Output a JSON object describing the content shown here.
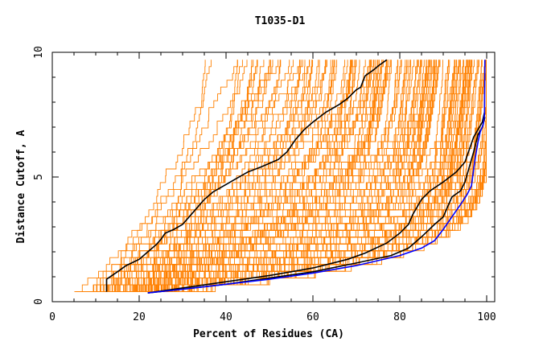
{
  "chart_data": {
    "type": "line",
    "title": "T1035-D1",
    "xlabel": "Percent of Residues (CA)",
    "ylabel": "Distance Cutoff, A",
    "xlim": [
      0,
      100
    ],
    "ylim": [
      0,
      10
    ],
    "xticks": [
      "0",
      "20",
      "40",
      "60",
      "80",
      "100"
    ],
    "yticks": [
      "0",
      "5",
      "10"
    ],
    "x_minor_step": 5,
    "y_minor_step": 1,
    "grid": false,
    "legend": "none",
    "background_model_count": 160,
    "colors": {
      "background": "#FF8000",
      "highlight": "#000000",
      "best": "#0000FF"
    },
    "series": [
      {
        "color": "#000000",
        "points": [
          [
            12.5,
            0.4
          ],
          [
            12.5,
            0.9
          ],
          [
            15,
            1.2
          ],
          [
            17,
            1.45
          ],
          [
            20,
            1.7
          ],
          [
            22,
            2.0
          ],
          [
            24,
            2.3
          ],
          [
            25,
            2.5
          ],
          [
            26,
            2.75
          ],
          [
            28,
            2.9
          ],
          [
            30,
            3.1
          ],
          [
            31,
            3.3
          ],
          [
            33,
            3.7
          ],
          [
            35,
            4.1
          ],
          [
            37,
            4.4
          ],
          [
            40,
            4.7
          ],
          [
            42,
            4.9
          ],
          [
            45,
            5.2
          ],
          [
            48,
            5.4
          ],
          [
            50,
            5.55
          ],
          [
            52,
            5.7
          ],
          [
            54,
            6.0
          ],
          [
            56,
            6.5
          ],
          [
            58,
            6.9
          ],
          [
            60,
            7.2
          ],
          [
            63,
            7.6
          ],
          [
            66,
            7.9
          ],
          [
            68,
            8.15
          ],
          [
            70,
            8.5
          ],
          [
            71,
            8.6
          ],
          [
            72,
            9.05
          ],
          [
            74,
            9.3
          ],
          [
            75,
            9.45
          ],
          [
            77,
            9.7
          ]
        ]
      },
      {
        "color": "#000000",
        "points": [
          [
            22,
            0.35
          ],
          [
            30,
            0.55
          ],
          [
            40,
            0.8
          ],
          [
            50,
            1.05
          ],
          [
            60,
            1.35
          ],
          [
            68,
            1.7
          ],
          [
            72,
            1.95
          ],
          [
            77,
            2.35
          ],
          [
            80,
            2.75
          ],
          [
            82,
            3.1
          ],
          [
            83,
            3.5
          ],
          [
            85,
            4.1
          ],
          [
            87,
            4.45
          ],
          [
            90,
            4.8
          ],
          [
            93,
            5.2
          ],
          [
            95,
            5.6
          ],
          [
            96,
            6.1
          ],
          [
            97,
            6.6
          ],
          [
            98,
            6.9
          ],
          [
            99,
            7.2
          ],
          [
            99.5,
            7.6
          ]
        ]
      },
      {
        "color": "#000000",
        "points": [
          [
            22,
            0.35
          ],
          [
            30,
            0.5
          ],
          [
            40,
            0.7
          ],
          [
            50,
            0.95
          ],
          [
            60,
            1.2
          ],
          [
            70,
            1.55
          ],
          [
            78,
            1.85
          ],
          [
            82,
            2.15
          ],
          [
            85,
            2.6
          ],
          [
            88,
            3.1
          ],
          [
            90,
            3.4
          ],
          [
            91,
            3.8
          ],
          [
            92,
            4.2
          ],
          [
            94,
            4.45
          ],
          [
            95,
            4.8
          ],
          [
            96,
            5.4
          ],
          [
            97,
            6.0
          ],
          [
            98,
            6.7
          ],
          [
            99,
            7.0
          ],
          [
            99.6,
            7.4
          ]
        ]
      },
      {
        "color": "#0000FF",
        "points": [
          [
            22,
            0.35
          ],
          [
            30,
            0.5
          ],
          [
            40,
            0.7
          ],
          [
            50,
            0.9
          ],
          [
            60,
            1.15
          ],
          [
            70,
            1.45
          ],
          [
            80,
            1.85
          ],
          [
            85,
            2.15
          ],
          [
            88,
            2.45
          ],
          [
            90,
            2.9
          ],
          [
            92,
            3.4
          ],
          [
            94,
            3.9
          ],
          [
            95.5,
            4.3
          ],
          [
            96.5,
            4.65
          ],
          [
            97,
            5.3
          ],
          [
            97.5,
            5.9
          ],
          [
            98,
            6.4
          ],
          [
            98.5,
            6.8
          ],
          [
            99.2,
            7.1
          ],
          [
            99.5,
            7.5
          ],
          [
            99.6,
            9.7
          ]
        ]
      }
    ]
  }
}
